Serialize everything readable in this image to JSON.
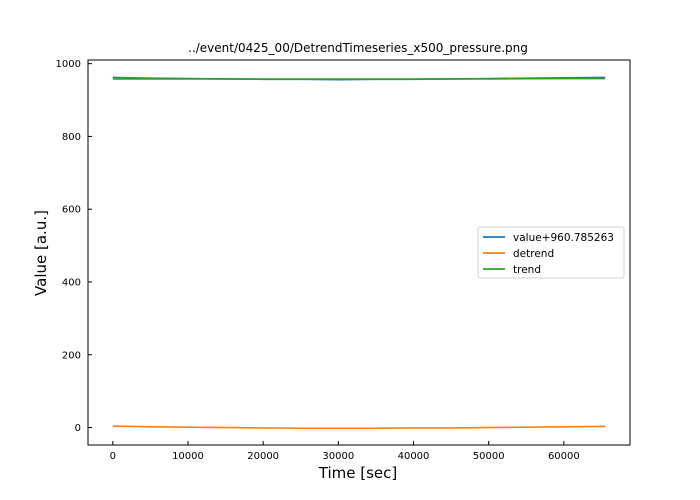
{
  "chart_data": {
    "type": "line",
    "title": "../event/0425_00/DetrendTimeseries_x500_pressure.png",
    "xlabel": "Time [sec]",
    "ylabel": "Value [a.u.]",
    "xlim": [
      -3300,
      68800
    ],
    "ylim": [
      -48,
      1010
    ],
    "xticks": [
      0,
      10000,
      20000,
      30000,
      40000,
      50000,
      60000
    ],
    "yticks": [
      0,
      200,
      400,
      600,
      800,
      1000
    ],
    "grid": false,
    "legend_position": "center-right",
    "series": [
      {
        "name": "value+960.785263",
        "color": "#1f77b4",
        "x": [
          0,
          5000,
          10000,
          15000,
          20000,
          25000,
          30000,
          35000,
          40000,
          45000,
          50000,
          55000,
          60000,
          65500
        ],
        "y": [
          962,
          960,
          959,
          958,
          957,
          957,
          956,
          957,
          957,
          958,
          959,
          960,
          961,
          962
        ]
      },
      {
        "name": "detrend",
        "color": "#ff7f0e",
        "x": [
          0,
          5000,
          10000,
          15000,
          20000,
          25000,
          30000,
          35000,
          40000,
          45000,
          50000,
          55000,
          60000,
          65500
        ],
        "y": [
          4,
          2,
          1,
          0,
          -1,
          -2,
          -2,
          -2,
          -1,
          -1,
          0,
          1,
          2,
          3
        ]
      },
      {
        "name": "trend",
        "color": "#2ca02c",
        "x": [
          0,
          5000,
          10000,
          15000,
          20000,
          25000,
          30000,
          35000,
          40000,
          45000,
          50000,
          55000,
          60000,
          65500
        ],
        "y": [
          958,
          958,
          958,
          958,
          957.5,
          957.5,
          957.5,
          957.5,
          957.5,
          958,
          958,
          958.5,
          959,
          959
        ]
      }
    ]
  }
}
